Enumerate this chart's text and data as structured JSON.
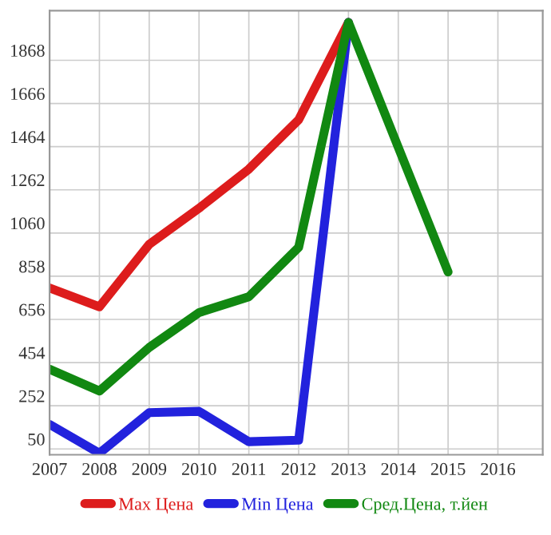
{
  "chart_data": {
    "type": "line",
    "x": [
      2007,
      2008,
      2009,
      2010,
      2011,
      2012,
      2013,
      2014,
      2015
    ],
    "series": [
      {
        "name": "Max Цена",
        "color": "#dd1c1c",
        "values": [
          803,
          715,
          1007,
          1176,
          1359,
          1590,
          2045,
          null,
          null
        ]
      },
      {
        "name": "Min Цена",
        "color": "#2222dd",
        "values": [
          165,
          30,
          220,
          226,
          84,
          91,
          2045,
          null,
          null
        ]
      },
      {
        "name": "Сред.Цена, т.йен",
        "color": "#118811",
        "values": [
          423,
          321,
          525,
          688,
          762,
          993,
          2045,
          1461,
          878
        ]
      }
    ],
    "xlim": [
      2007,
      2016.9
    ],
    "xticks": [
      2007,
      2008,
      2009,
      2010,
      2011,
      2012,
      2013,
      2014,
      2015,
      2016
    ],
    "ylim": [
      23,
      2100
    ],
    "yticks": [
      50,
      252,
      454,
      656,
      858,
      1060,
      1262,
      1464,
      1666,
      1868
    ],
    "grid": true,
    "legend": "bottom",
    "marker": "none",
    "line_style": "solid"
  }
}
